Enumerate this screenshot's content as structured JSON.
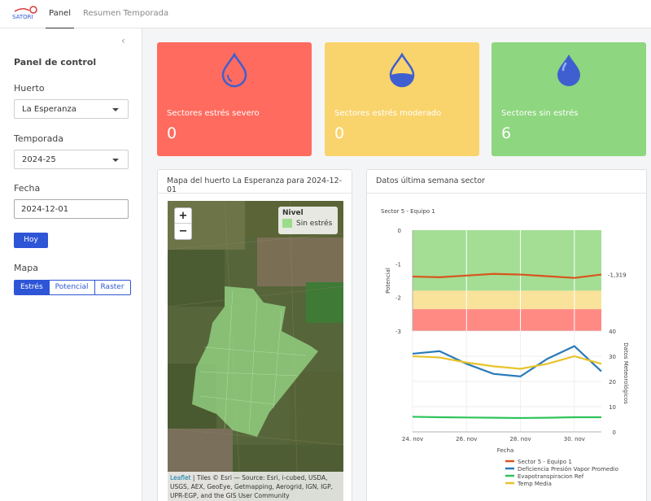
{
  "app": {
    "logo_text": "SATORI",
    "tabs": [
      {
        "label": "Panel",
        "active": true
      },
      {
        "label": "Resumen Temporada",
        "active": false
      }
    ]
  },
  "sidebar": {
    "title": "Panel de control",
    "collapse_icon": "chevron-left-icon",
    "huerto": {
      "label": "Huerto",
      "value": "La Esperanza"
    },
    "temporada": {
      "label": "Temporada",
      "value": "2024-25"
    },
    "fecha": {
      "label": "Fecha",
      "value": "2024-12-01"
    },
    "hoy_button": "Hoy",
    "mapa": {
      "label": "Mapa",
      "options": [
        "Estrés",
        "Potencial",
        "Raster"
      ],
      "selected": "Estrés"
    }
  },
  "cards": [
    {
      "label": "Sectores estrés severo",
      "value": "0",
      "color": "#ff6b5e",
      "icon": "water-drop-empty-icon"
    },
    {
      "label": "Sectores estrés moderado",
      "value": "0",
      "color": "#f9d46c",
      "icon": "water-drop-half-icon"
    },
    {
      "label": "Sectores sin estrés",
      "value": "6",
      "color": "#8ed67f",
      "icon": "water-drop-full-icon"
    }
  ],
  "map_panel": {
    "title": "Mapa del huerto La Esperanza para 2024-12-01",
    "zoom_in": "+",
    "zoom_out": "−",
    "legend": {
      "title": "Nivel",
      "items": [
        {
          "label": "Sin estrés",
          "color": "#9bdc8a"
        }
      ]
    },
    "attribution_link": "Leaflet",
    "attribution": " | Tiles © Esri — Source: Esri, i-cubed, USDA, USGS, AEX, GeoEye, Getmapping, Aerogrid, IGN, IGP, UPR-EGP, and the GIS User Community"
  },
  "chart_panel": {
    "title": "Datos última semana sector"
  },
  "chart_data": {
    "type": "line",
    "subtitle": "Sector 5 - Equipo 1",
    "xlabel": "Fecha",
    "x": [
      "2024-11-24",
      "2024-11-25",
      "2024-11-26",
      "2024-11-27",
      "2024-11-28",
      "2024-11-29",
      "2024-11-30",
      "2024-12-01"
    ],
    "xticks": [
      "24. nov",
      "26. nov",
      "28. nov",
      "30. nov"
    ],
    "top": {
      "ylabel": "Potencial",
      "ylim": [
        -3,
        0
      ],
      "yticks": [
        "0",
        "-1",
        "-2",
        "-3"
      ],
      "bands": [
        {
          "from": 0,
          "to": -1.8,
          "color": "#a3de94"
        },
        {
          "from": -1.8,
          "to": -2.35,
          "color": "#f9e29a"
        },
        {
          "from": -2.35,
          "to": -3,
          "color": "#ff8a84"
        }
      ],
      "series": [
        {
          "name": "Sector 5 - Equipo 1",
          "color": "#d9541e",
          "values": [
            -1.38,
            -1.4,
            -1.35,
            -1.3,
            -1.32,
            -1.37,
            -1.42,
            -1.32
          ]
        }
      ],
      "last_value_label": "-1,319"
    },
    "bottom": {
      "ylabel": "Datos Meteorológicos",
      "ylim": [
        0,
        40
      ],
      "yticks": [
        "40",
        "30",
        "20",
        "10",
        "0"
      ],
      "series": [
        {
          "name": "Deficiencia Presión Vapor Promedio",
          "color": "#2a7ab9",
          "values": [
            31,
            32,
            27,
            23,
            22,
            29,
            34,
            24
          ]
        },
        {
          "name": "Evapotranspiracion Ref",
          "color": "#2ec45a",
          "values": [
            6,
            5.8,
            5.7,
            5.6,
            5.5,
            5.6,
            5.8,
            5.8
          ]
        },
        {
          "name": "Temp Media",
          "color": "#e8c32a",
          "values": [
            30,
            29.5,
            27.5,
            26,
            25,
            27,
            30,
            27
          ]
        }
      ]
    },
    "legend": [
      {
        "name": "Sector 5 - Equipo 1",
        "color": "#d9541e"
      },
      {
        "name": "Deficiencia Presión Vapor Promedio",
        "color": "#2a7ab9"
      },
      {
        "name": "Evapotranspiracion Ref",
        "color": "#2ec45a"
      },
      {
        "name": "Temp Media",
        "color": "#e8c32a"
      }
    ]
  }
}
